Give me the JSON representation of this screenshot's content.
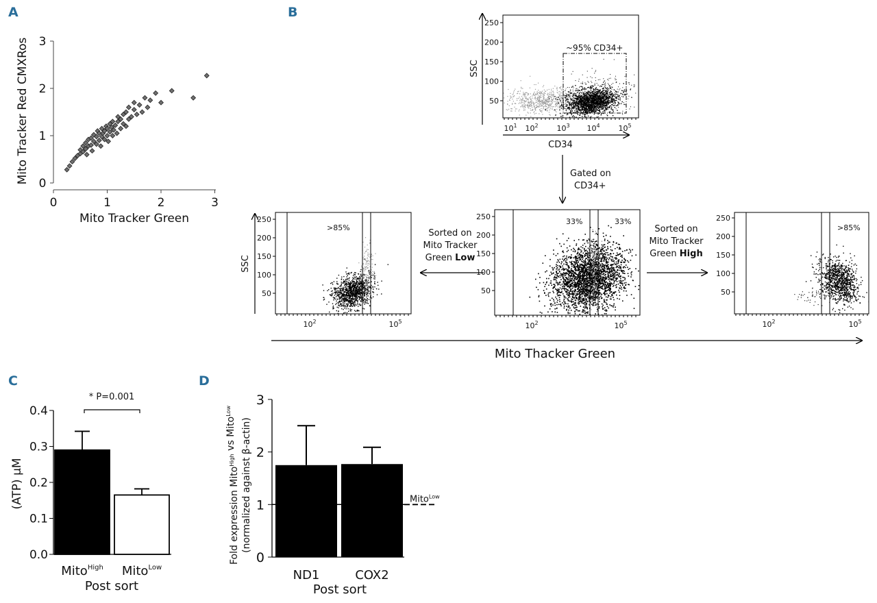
{
  "panels": {
    "a": "A",
    "b": "B",
    "c": "C",
    "d": "D"
  },
  "panel_a": {
    "xlabel": "Mito Tracker Green",
    "ylabel": "Mito Tracker Red CMXRos",
    "xticks": [
      "0",
      "1",
      "2",
      "3"
    ],
    "yticks": [
      "0",
      "1",
      "2",
      "3"
    ],
    "point_color": "#707070",
    "edge_color": "#222222"
  },
  "panel_b": {
    "top": {
      "ylabel": "SSC",
      "xlabel": "CD34",
      "yticks": [
        "250",
        "200",
        "150",
        "100",
        "50"
      ],
      "xticks": [
        "10",
        "10",
        "10",
        "10",
        "10"
      ],
      "xtick_exp": [
        "1",
        "2",
        "3",
        "4",
        "5"
      ],
      "gate_label": "~95% CD34+"
    },
    "arrow_down_label": [
      "Gated on",
      "CD34+"
    ],
    "left": {
      "ylabel": "SSC",
      "pct": ">85%",
      "yticks": [
        "250",
        "200",
        "150",
        "100",
        "50"
      ],
      "xticks": [
        "10",
        "10"
      ],
      "xtick_exp": [
        "2",
        "5"
      ]
    },
    "middle": {
      "pct_left": "33%",
      "pct_right": "33%",
      "yticks": [
        "250",
        "200",
        "150",
        "100",
        "50"
      ],
      "xticks": [
        "10",
        "10"
      ],
      "xtick_exp": [
        "2",
        "5"
      ]
    },
    "right": {
      "pct": ">85%",
      "yticks": [
        "250",
        "200",
        "150",
        "100",
        "50"
      ],
      "xticks": [
        "10",
        "10"
      ],
      "xtick_exp": [
        "2",
        "5"
      ]
    },
    "sort_low": [
      "Sorted on",
      "Mito Tracker",
      "Green "
    ],
    "sort_low_bold": "Low",
    "sort_high": [
      "Sorted on",
      "Mito Tracker",
      "Green "
    ],
    "sort_high_bold": "High",
    "bottom_axis": "Mito Thacker Green"
  },
  "chart_data": [
    {
      "panel": "A",
      "type": "scatter",
      "xlabel": "Mito Tracker Green",
      "ylabel": "Mito Tracker Red CMXRos",
      "xlim": [
        0,
        3
      ],
      "ylim": [
        0,
        3
      ],
      "points": [
        [
          0.25,
          0.28
        ],
        [
          0.3,
          0.36
        ],
        [
          0.35,
          0.45
        ],
        [
          0.4,
          0.52
        ],
        [
          0.45,
          0.58
        ],
        [
          0.5,
          0.62
        ],
        [
          0.5,
          0.7
        ],
        [
          0.55,
          0.66
        ],
        [
          0.55,
          0.78
        ],
        [
          0.6,
          0.72
        ],
        [
          0.6,
          0.85
        ],
        [
          0.62,
          0.6
        ],
        [
          0.65,
          0.78
        ],
        [
          0.65,
          0.92
        ],
        [
          0.7,
          0.8
        ],
        [
          0.7,
          0.95
        ],
        [
          0.72,
          0.68
        ],
        [
          0.75,
          0.88
        ],
        [
          0.75,
          1.02
        ],
        [
          0.8,
          0.82
        ],
        [
          0.8,
          0.98
        ],
        [
          0.82,
          1.1
        ],
        [
          0.85,
          0.9
        ],
        [
          0.85,
          1.05
        ],
        [
          0.88,
          0.78
        ],
        [
          0.9,
          0.98
        ],
        [
          0.9,
          1.15
        ],
        [
          0.92,
          1.05
        ],
        [
          0.95,
          0.92
        ],
        [
          0.95,
          1.1
        ],
        [
          0.98,
          1.2
        ],
        [
          1.0,
          1.0
        ],
        [
          1.0,
          1.15
        ],
        [
          1.02,
          0.88
        ],
        [
          1.05,
          1.08
        ],
        [
          1.05,
          1.25
        ],
        [
          1.08,
          1.18
        ],
        [
          1.1,
          1.0
        ],
        [
          1.1,
          1.3
        ],
        [
          1.12,
          1.12
        ],
        [
          1.15,
          1.22
        ],
        [
          1.18,
          1.05
        ],
        [
          1.2,
          1.3
        ],
        [
          1.2,
          1.4
        ],
        [
          1.25,
          1.15
        ],
        [
          1.25,
          1.35
        ],
        [
          1.3,
          1.25
        ],
        [
          1.3,
          1.45
        ],
        [
          1.35,
          1.2
        ],
        [
          1.35,
          1.5
        ],
        [
          1.4,
          1.35
        ],
        [
          1.4,
          1.6
        ],
        [
          1.45,
          1.4
        ],
        [
          1.5,
          1.55
        ],
        [
          1.5,
          1.7
        ],
        [
          1.55,
          1.45
        ],
        [
          1.6,
          1.65
        ],
        [
          1.65,
          1.5
        ],
        [
          1.7,
          1.8
        ],
        [
          1.75,
          1.6
        ],
        [
          1.8,
          1.75
        ],
        [
          1.9,
          1.9
        ],
        [
          2.0,
          1.7
        ],
        [
          2.2,
          1.95
        ],
        [
          2.6,
          1.8
        ],
        [
          2.85,
          2.27
        ]
      ]
    },
    {
      "panel": "C",
      "type": "bar",
      "categories": [
        "Mito^High",
        "Mito^Low"
      ],
      "values": [
        0.29,
        0.165
      ],
      "errors": [
        0.052,
        0.017
      ],
      "ylabel": "(ATP) μM",
      "xlabel": "Post sort",
      "ylim": [
        0,
        0.4
      ],
      "yticks": [
        "0.0",
        "0.1",
        "0.2",
        "0.3",
        "0.4"
      ],
      "fills": [
        "#000000",
        "#ffffff"
      ],
      "annotation": "* P=0.001"
    },
    {
      "panel": "D",
      "type": "bar",
      "categories": [
        "ND1",
        "COX2"
      ],
      "values": [
        1.75,
        1.77
      ],
      "errors": [
        0.75,
        0.32
      ],
      "ylabel": [
        "Fold expression Mito^High vs Mito^Low",
        "(normalized against β-actin)"
      ],
      "xlabel": "Post sort",
      "ylim": [
        0,
        3
      ],
      "yticks": [
        "0",
        "1",
        "2",
        "3"
      ],
      "reference_line": {
        "y": 1,
        "label": "Mito^Low"
      }
    }
  ]
}
